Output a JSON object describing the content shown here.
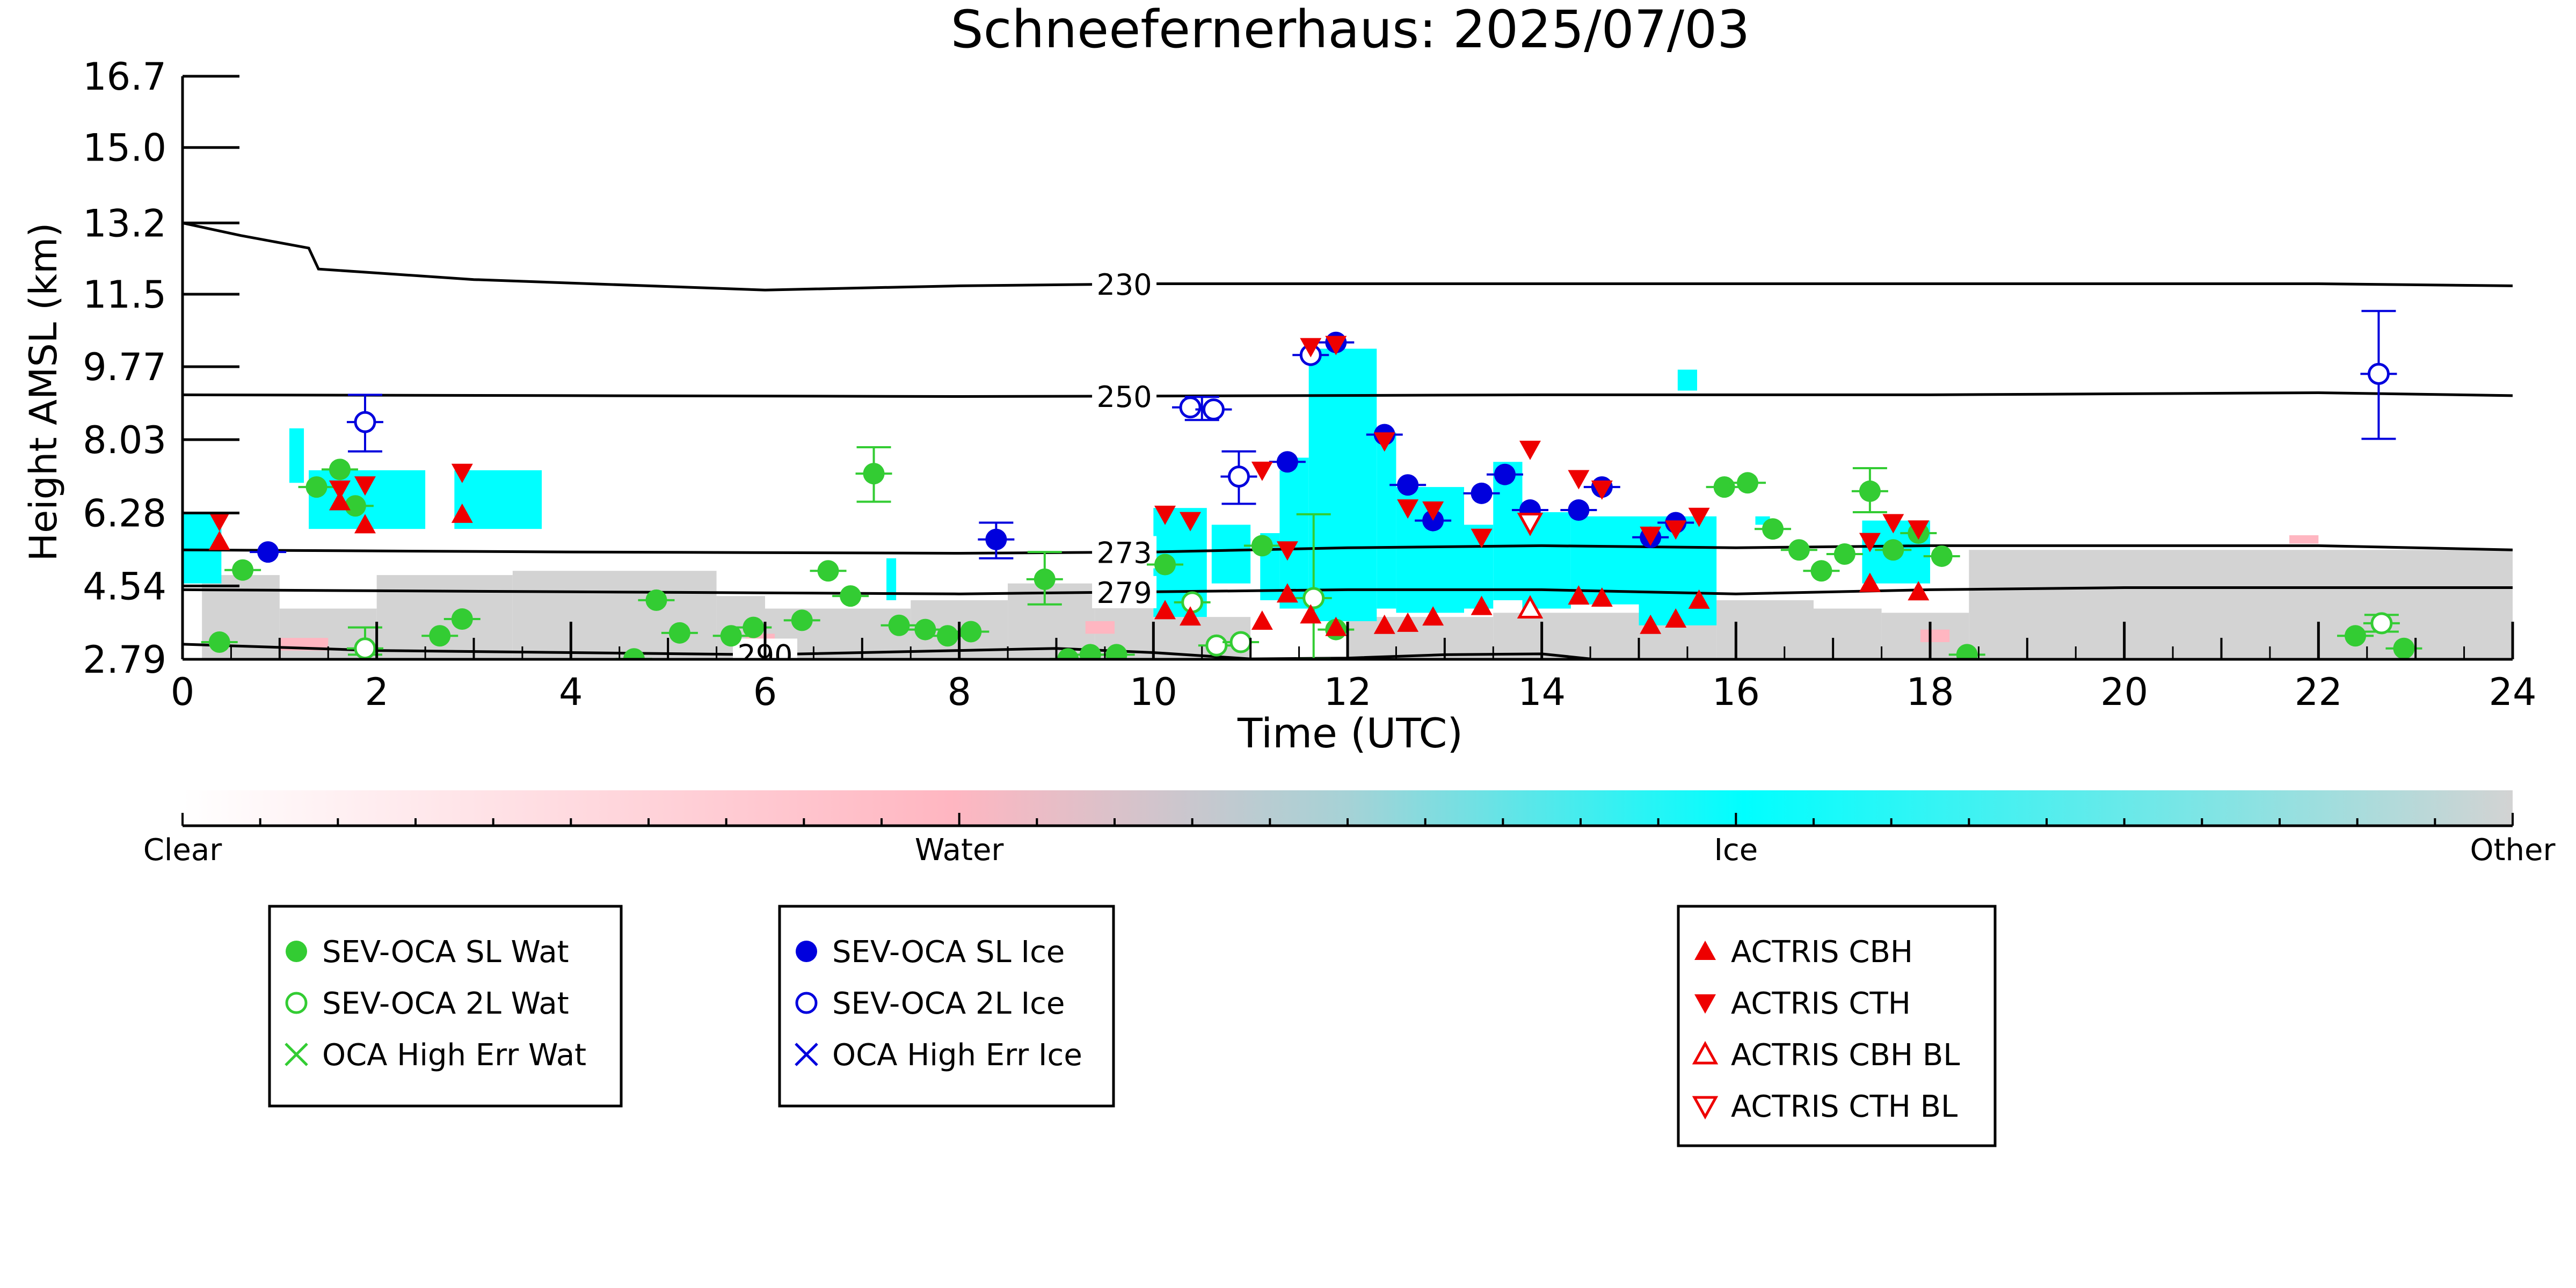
{
  "chart_data": {
    "type": "scatter",
    "title": "Schneefernerhaus: 2025/07/03",
    "xlabel": "Time (UTC)",
    "ylabel": "Height AMSL (km)",
    "xlim": [
      0,
      24
    ],
    "ylim": [
      2.79,
      16.7
    ],
    "xticks": [
      0,
      2,
      4,
      6,
      8,
      10,
      12,
      14,
      16,
      18,
      20,
      22,
      24
    ],
    "yticks": [
      "2.79",
      "4.54",
      "6.28",
      "8.03",
      "9.77",
      "11.5",
      "13.2",
      "15.0",
      "16.7"
    ],
    "contours": [
      {
        "label": "230",
        "label_x": 9.7,
        "points": [
          [
            0,
            13.2
          ],
          [
            0.6,
            12.9
          ],
          [
            1.3,
            12.6
          ],
          [
            1.4,
            12.1
          ],
          [
            3,
            11.85
          ],
          [
            6,
            11.6
          ],
          [
            8,
            11.7
          ],
          [
            10,
            11.75
          ],
          [
            14,
            11.75
          ],
          [
            18,
            11.75
          ],
          [
            22,
            11.75
          ],
          [
            24,
            11.7
          ]
        ]
      },
      {
        "label": "250",
        "label_x": 9.7,
        "points": [
          [
            0,
            9.1
          ],
          [
            4,
            9.08
          ],
          [
            8,
            9.06
          ],
          [
            10,
            9.07
          ],
          [
            14,
            9.1
          ],
          [
            18,
            9.1
          ],
          [
            22,
            9.15
          ],
          [
            24,
            9.08
          ]
        ]
      },
      {
        "label": "273",
        "label_x": 9.7,
        "points": [
          [
            0,
            5.4
          ],
          [
            4,
            5.35
          ],
          [
            8,
            5.32
          ],
          [
            10,
            5.35
          ],
          [
            12,
            5.45
          ],
          [
            14,
            5.5
          ],
          [
            16,
            5.45
          ],
          [
            18,
            5.5
          ],
          [
            20,
            5.5
          ],
          [
            22,
            5.5
          ],
          [
            24,
            5.4
          ]
        ]
      },
      {
        "label": "279",
        "label_x": 9.7,
        "points": [
          [
            0,
            4.45
          ],
          [
            4,
            4.4
          ],
          [
            8,
            4.35
          ],
          [
            10,
            4.4
          ],
          [
            12,
            4.45
          ],
          [
            14,
            4.45
          ],
          [
            16,
            4.35
          ],
          [
            18,
            4.45
          ],
          [
            20,
            4.5
          ],
          [
            22,
            4.5
          ],
          [
            24,
            4.5
          ]
        ]
      },
      {
        "label": "290",
        "label_x": 6.0,
        "points": [
          [
            0,
            3.15
          ],
          [
            2,
            3.0
          ],
          [
            4,
            2.95
          ],
          [
            6,
            2.9
          ],
          [
            8,
            3.0
          ],
          [
            9,
            3.05
          ],
          [
            10,
            2.95
          ],
          [
            11,
            2.8
          ],
          [
            12,
            2.82
          ],
          [
            13,
            2.9
          ],
          [
            14,
            2.92
          ],
          [
            14.5,
            2.8
          ]
        ]
      }
    ],
    "lidar": {
      "other": [
        [
          0.2,
          1.0,
          4.8
        ],
        [
          1.0,
          2.0,
          4.0
        ],
        [
          2.0,
          3.4,
          4.8
        ],
        [
          3.4,
          5.5,
          4.9
        ],
        [
          5.5,
          6.0,
          4.3
        ],
        [
          6.0,
          7.5,
          4.0
        ],
        [
          7.5,
          8.5,
          4.2
        ],
        [
          8.5,
          9.4,
          4.6
        ],
        [
          9.4,
          10.0,
          4.2
        ],
        [
          10.0,
          11.0,
          3.8
        ],
        [
          12.0,
          13.5,
          3.8
        ],
        [
          13.5,
          15.8,
          3.9
        ],
        [
          15.8,
          16.8,
          4.2
        ],
        [
          16.8,
          17.5,
          4.0
        ],
        [
          17.5,
          18.4,
          3.9
        ],
        [
          18.4,
          24.0,
          5.4
        ]
      ],
      "ice": [
        [
          0.0,
          0.4,
          4.6,
          6.3
        ],
        [
          1.1,
          1.25,
          7.0,
          8.3
        ],
        [
          1.3,
          2.5,
          5.9,
          7.3
        ],
        [
          2.8,
          3.7,
          5.9,
          7.3
        ],
        [
          7.25,
          7.35,
          4.2,
          5.2
        ],
        [
          10.0,
          10.55,
          3.8,
          6.4
        ],
        [
          10.6,
          11.0,
          4.6,
          6.0
        ],
        [
          11.1,
          11.3,
          4.2,
          5.8
        ],
        [
          11.3,
          11.4,
          4.0,
          7.3
        ],
        [
          11.4,
          11.6,
          4.0,
          7.6
        ],
        [
          11.6,
          12.3,
          3.7,
          10.2
        ],
        [
          12.3,
          12.5,
          4.0,
          8.2
        ],
        [
          12.5,
          13.2,
          3.9,
          6.9
        ],
        [
          13.2,
          13.5,
          4.0,
          6.0
        ],
        [
          13.5,
          13.8,
          4.2,
          7.5
        ],
        [
          13.8,
          14.3,
          4.0,
          6.3
        ],
        [
          14.3,
          15.0,
          4.1,
          6.2
        ],
        [
          15.0,
          15.8,
          3.6,
          6.2
        ],
        [
          16.2,
          16.35,
          6.0,
          6.2
        ],
        [
          17.3,
          18.0,
          4.6,
          6.1
        ],
        [
          15.4,
          15.6,
          9.2,
          9.7
        ]
      ],
      "water": [
        [
          1.0,
          1.5,
          3.0,
          3.3
        ],
        [
          5.8,
          6.1,
          3.2,
          3.4
        ],
        [
          9.3,
          9.6,
          3.4,
          3.7
        ],
        [
          17.9,
          18.2,
          3.2,
          3.5
        ],
        [
          21.7,
          22.0,
          5.55,
          5.75
        ]
      ]
    },
    "series": [
      {
        "name": "SEV-OCA SL Wat",
        "color": "#33cc33",
        "marker": "filled-circle",
        "points": [
          [
            0.38,
            3.2
          ],
          [
            0.62,
            4.92
          ],
          [
            1.38,
            6.9
          ],
          [
            1.62,
            7.32
          ],
          [
            1.78,
            6.45
          ],
          [
            2.65,
            3.35
          ],
          [
            2.88,
            3.75
          ],
          [
            4.65,
            2.8
          ],
          [
            4.88,
            4.2
          ],
          [
            5.12,
            3.42
          ],
          [
            5.65,
            3.35
          ],
          [
            5.88,
            3.55
          ],
          [
            6.38,
            3.72
          ],
          [
            6.65,
            4.9
          ],
          [
            6.88,
            4.3
          ],
          [
            7.12,
            7.22
          ],
          [
            7.38,
            3.6
          ],
          [
            7.65,
            3.5
          ],
          [
            7.88,
            3.35
          ],
          [
            8.12,
            3.45
          ],
          [
            8.88,
            4.7
          ],
          [
            9.12,
            2.8
          ],
          [
            9.35,
            2.9
          ],
          [
            9.62,
            2.9
          ],
          [
            10.12,
            5.05
          ],
          [
            11.12,
            5.5
          ],
          [
            11.88,
            3.5
          ],
          [
            15.88,
            6.9
          ],
          [
            16.12,
            7.0
          ],
          [
            16.38,
            5.9
          ],
          [
            16.65,
            5.4
          ],
          [
            16.88,
            4.9
          ],
          [
            17.12,
            5.3
          ],
          [
            17.38,
            6.8
          ],
          [
            17.62,
            5.4
          ],
          [
            17.88,
            5.8
          ],
          [
            18.12,
            5.25
          ],
          [
            18.38,
            2.9
          ],
          [
            22.38,
            3.35
          ],
          [
            22.88,
            3.05
          ]
        ]
      },
      {
        "name": "SEV-OCA 2L Wat",
        "color": "#33cc33",
        "marker": "open-circle",
        "points": [
          [
            1.88,
            3.05
          ],
          [
            10.4,
            4.15
          ],
          [
            10.65,
            3.12
          ],
          [
            10.9,
            3.2
          ],
          [
            11.65,
            4.25
          ],
          [
            22.65,
            3.65
          ]
        ]
      },
      {
        "name": "SEV-OCA SL Ice",
        "color": "#0000dd",
        "marker": "filled-circle",
        "points": [
          [
            0.88,
            5.35
          ],
          [
            8.38,
            5.65
          ],
          [
            11.38,
            7.5
          ],
          [
            11.88,
            10.35
          ],
          [
            12.38,
            8.15
          ],
          [
            12.62,
            6.95
          ],
          [
            12.88,
            6.1
          ],
          [
            13.38,
            6.75
          ],
          [
            13.62,
            7.2
          ],
          [
            13.88,
            6.35
          ],
          [
            14.38,
            6.35
          ],
          [
            14.62,
            6.9
          ],
          [
            15.12,
            5.7
          ],
          [
            15.38,
            6.05
          ]
        ]
      },
      {
        "name": "SEV-OCA 2L Ice",
        "color": "#0000dd",
        "marker": "open-circle",
        "points": [
          [
            1.88,
            8.45
          ],
          [
            10.38,
            8.8
          ],
          [
            10.62,
            8.75
          ],
          [
            10.88,
            7.15
          ],
          [
            11.62,
            10.05
          ],
          [
            22.62,
            9.6
          ]
        ]
      },
      {
        "name": "ACTRIS CBH",
        "color": "#ee0000",
        "marker": "triangle-up",
        "points": [
          [
            0.38,
            5.6
          ],
          [
            1.62,
            6.55
          ],
          [
            1.88,
            6.0
          ],
          [
            2.88,
            6.25
          ],
          [
            10.12,
            3.95
          ],
          [
            10.38,
            3.8
          ],
          [
            11.12,
            3.7
          ],
          [
            11.38,
            4.35
          ],
          [
            11.62,
            3.85
          ],
          [
            11.88,
            3.55
          ],
          [
            12.38,
            3.6
          ],
          [
            12.62,
            3.65
          ],
          [
            12.88,
            3.8
          ],
          [
            13.38,
            4.05
          ],
          [
            14.38,
            4.3
          ],
          [
            14.62,
            4.25
          ],
          [
            15.12,
            3.6
          ],
          [
            15.38,
            3.75
          ],
          [
            15.62,
            4.2
          ],
          [
            17.38,
            4.6
          ],
          [
            17.88,
            4.4
          ]
        ]
      },
      {
        "name": "ACTRIS CTH",
        "color": "#ee0000",
        "marker": "triangle-down",
        "points": [
          [
            0.38,
            6.1
          ],
          [
            1.62,
            6.85
          ],
          [
            1.88,
            6.95
          ],
          [
            2.88,
            7.25
          ],
          [
            10.12,
            6.25
          ],
          [
            10.38,
            6.1
          ],
          [
            11.12,
            7.3
          ],
          [
            11.38,
            5.4
          ],
          [
            11.62,
            10.25
          ],
          [
            11.88,
            10.3
          ],
          [
            12.38,
            8.0
          ],
          [
            12.62,
            6.4
          ],
          [
            12.88,
            6.35
          ],
          [
            13.38,
            5.7
          ],
          [
            13.88,
            7.8
          ],
          [
            14.38,
            7.1
          ],
          [
            14.62,
            6.85
          ],
          [
            15.12,
            5.75
          ],
          [
            15.38,
            5.9
          ],
          [
            15.62,
            6.2
          ],
          [
            17.38,
            5.6
          ],
          [
            17.62,
            6.05
          ],
          [
            17.88,
            5.9
          ]
        ]
      },
      {
        "name": "ACTRIS CBH BL",
        "color": "#ee0000",
        "marker": "open-triangle-up",
        "points": [
          [
            13.88,
            4.0
          ]
        ]
      },
      {
        "name": "ACTRIS CTH BL",
        "color": "#ee0000",
        "marker": "open-triangle-down",
        "points": [
          [
            13.88,
            6.05
          ]
        ]
      },
      {
        "name": "OCA High Err Wat",
        "color": "#33cc33",
        "marker": "x",
        "points": []
      },
      {
        "name": "OCA High Err Ice",
        "color": "#0000dd",
        "marker": "x",
        "points": []
      }
    ],
    "error_bars": [
      {
        "x": 1.88,
        "lo": 7.75,
        "hi": 9.1,
        "color": "#0000dd"
      },
      {
        "x": 8.38,
        "lo": 5.2,
        "hi": 6.05,
        "color": "#0000dd"
      },
      {
        "x": 10.88,
        "lo": 6.5,
        "hi": 7.75,
        "color": "#0000dd"
      },
      {
        "x": 10.5,
        "lo": 8.5,
        "hi": 9.05,
        "color": "#0000dd"
      },
      {
        "x": 22.62,
        "lo": 8.05,
        "hi": 11.1,
        "color": "#0000dd"
      },
      {
        "x": 7.12,
        "lo": 6.55,
        "hi": 7.85,
        "color": "#33cc33"
      },
      {
        "x": 8.88,
        "lo": 4.1,
        "hi": 5.35,
        "color": "#33cc33"
      },
      {
        "x": 11.65,
        "lo": 2.8,
        "hi": 6.25,
        "color": "#33cc33"
      },
      {
        "x": 17.38,
        "lo": 6.3,
        "hi": 7.35,
        "color": "#33cc33"
      },
      {
        "x": 1.88,
        "lo": 2.9,
        "hi": 3.55,
        "color": "#33cc33"
      },
      {
        "x": 22.65,
        "lo": 3.45,
        "hi": 3.85,
        "color": "#33cc33"
      }
    ],
    "colorbar": {
      "labels": [
        "Clear",
        "Water",
        "Ice",
        "Other"
      ],
      "stops": [
        {
          "offset": 0,
          "color": "#ffffff"
        },
        {
          "offset": 0.33,
          "color": "#ffb6c1"
        },
        {
          "offset": 0.5,
          "color": "#a6d2d6"
        },
        {
          "offset": 0.67,
          "color": "#00ffff"
        },
        {
          "offset": 1,
          "color": "#d3d3d3"
        }
      ]
    },
    "legends": [
      [
        "SEV-OCA SL Wat",
        "SEV-OCA 2L Wat",
        "OCA High Err Wat"
      ],
      [
        "SEV-OCA SL Ice",
        "SEV-OCA 2L Ice",
        "OCA High Err Ice"
      ],
      [
        "ACTRIS CBH",
        "ACTRIS CTH",
        "ACTRIS CBH BL",
        "ACTRIS CTH BL"
      ]
    ]
  }
}
